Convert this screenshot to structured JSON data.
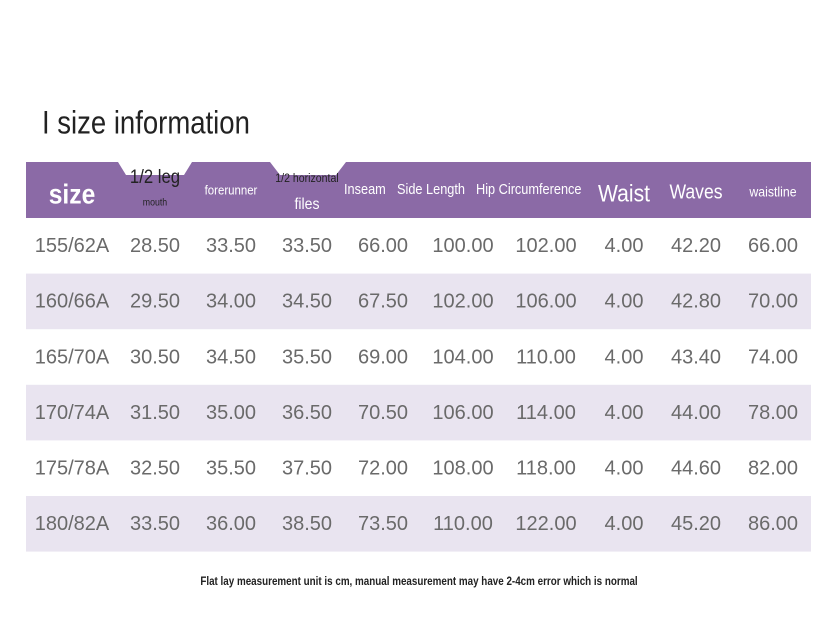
{
  "title": "I size information",
  "table": {
    "header": [
      [
        "size"
      ],
      [
        "1/2 leg",
        "mouth"
      ],
      [
        "forerunner"
      ],
      [
        "1/2 horizontal",
        "files"
      ],
      [
        "Inseam"
      ],
      [
        "Side Length"
      ],
      [
        "Hip Circumference"
      ],
      [
        "Waist"
      ],
      [
        "Waves"
      ],
      [
        "waistline"
      ]
    ],
    "rows": [
      [
        "155/62A",
        "28.50",
        "33.50",
        "33.50",
        "66.00",
        "100.00",
        "102.00",
        "4.00",
        "42.20",
        "66.00"
      ],
      [
        "160/66A",
        "29.50",
        "34.00",
        "34.50",
        "67.50",
        "102.00",
        "106.00",
        "4.00",
        "42.80",
        "70.00"
      ],
      [
        "165/70A",
        "30.50",
        "34.50",
        "35.50",
        "69.00",
        "104.00",
        "110.00",
        "4.00",
        "43.40",
        "74.00"
      ],
      [
        "170/74A",
        "31.50",
        "35.00",
        "36.50",
        "70.50",
        "106.00",
        "114.00",
        "4.00",
        "44.00",
        "78.00"
      ],
      [
        "175/78A",
        "32.50",
        "35.50",
        "37.50",
        "72.00",
        "108.00",
        "118.00",
        "4.00",
        "44.60",
        "82.00"
      ],
      [
        "180/82A",
        "33.50",
        "36.00",
        "38.50",
        "73.50",
        "110.00",
        "122.00",
        "4.00",
        "45.20",
        "86.00"
      ]
    ]
  },
  "note": "Flat lay measurement unit is cm, manual measurement may have 2-4cm error which is normal"
}
